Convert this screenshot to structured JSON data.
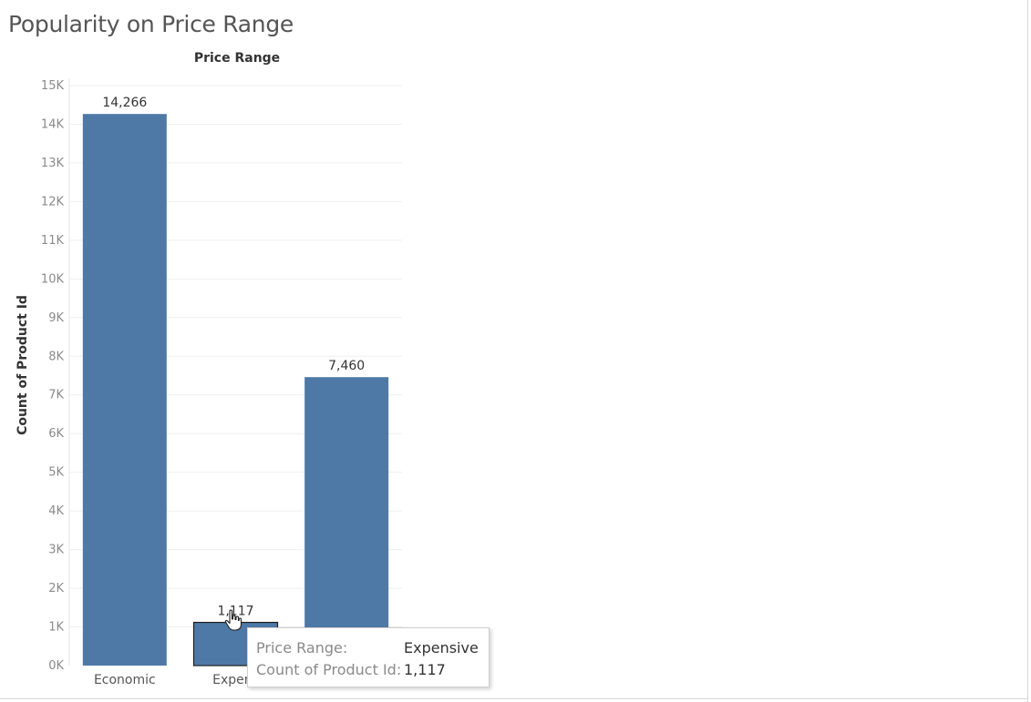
{
  "title": "Popularity on Price Range",
  "chart_data": {
    "type": "bar",
    "column_header": "Price Range",
    "ylabel": "Count of Product Id",
    "ylim": [
      0,
      15000
    ],
    "yticks": [
      "0K",
      "1K",
      "2K",
      "3K",
      "4K",
      "5K",
      "6K",
      "7K",
      "8K",
      "9K",
      "10K",
      "11K",
      "12K",
      "13K",
      "14K",
      "15K"
    ],
    "categories": [
      "Economic",
      "Expensive",
      ""
    ],
    "visible_category_labels": [
      "Economic",
      "Expens",
      ""
    ],
    "values": [
      14266,
      1117,
      7460
    ],
    "data_labels": [
      "14,266",
      "1,117",
      "7,460"
    ],
    "bar_color": "#4e79a7",
    "highlighted_index": 1,
    "grid": true
  },
  "tooltip": {
    "key1": "Price Range:",
    "val1": "Expensive",
    "key2": "Count of Product Id:",
    "val2": "1,117"
  }
}
